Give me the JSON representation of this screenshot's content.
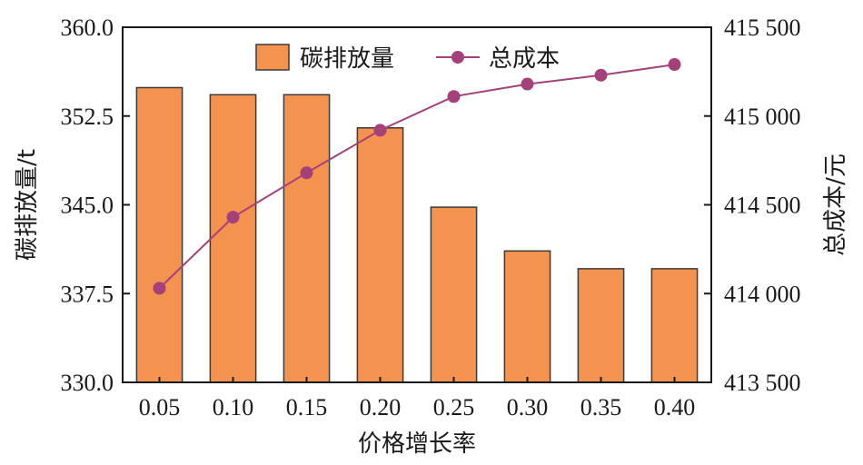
{
  "chart_data": {
    "type": "bar+line",
    "xlabel": "价格增长率",
    "ylabel_left": "碳排放量/t",
    "ylabel_right": "总成本/元",
    "categories": [
      "0.05",
      "0.10",
      "0.15",
      "0.20",
      "0.25",
      "0.30",
      "0.35",
      "0.40"
    ],
    "ylim_left": [
      330.0,
      360.0
    ],
    "yticks_left": [
      "330.0",
      "337.5",
      "345.0",
      "352.5",
      "360.0"
    ],
    "ylim_right": [
      413500,
      415500
    ],
    "yticks_right": [
      "413 500",
      "414 000",
      "414 500",
      "415 000",
      "415 500"
    ],
    "series": [
      {
        "name": "碳排放量",
        "type": "bar",
        "axis": "left",
        "values": [
          354.9,
          354.3,
          354.3,
          351.5,
          344.8,
          341.1,
          339.6,
          339.6
        ],
        "color": "#F4924F"
      },
      {
        "name": "总成本",
        "type": "line",
        "axis": "right",
        "values": [
          414030,
          414430,
          414680,
          414920,
          415110,
          415180,
          415230,
          415290
        ],
        "color": "#A5417A"
      }
    ],
    "legend_position": "top-center",
    "grid": false
  }
}
